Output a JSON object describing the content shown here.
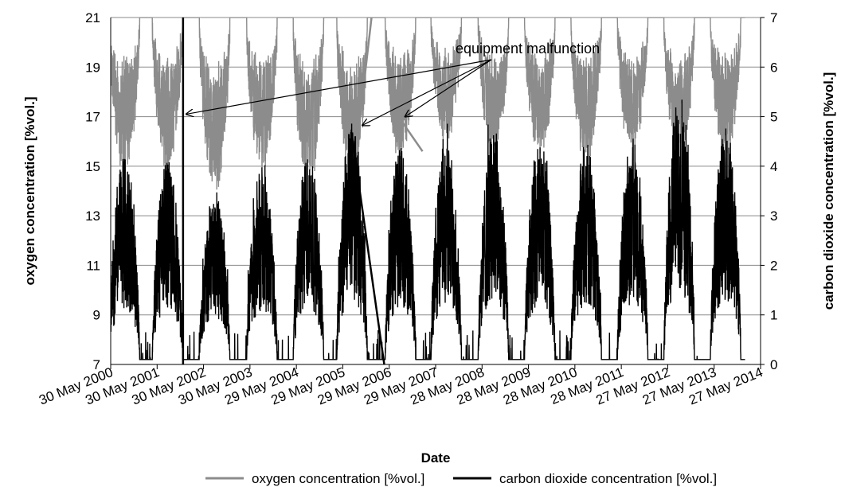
{
  "chart_data": {
    "type": "line",
    "title": "",
    "xlabel": "Date",
    "ylabel": "oxygen concentration [%vol.]",
    "y2label": "carbon dioxide concentration [%vol.]",
    "ylim": [
      7,
      21
    ],
    "y2lim": [
      0,
      7
    ],
    "yticks": [
      7,
      9,
      11,
      13,
      15,
      17,
      19,
      21
    ],
    "y2ticks": [
      0,
      1,
      2,
      3,
      4,
      5,
      6,
      7
    ],
    "xlim": [
      "2000-05-30",
      "2014-05-27"
    ],
    "xtick_labels": [
      "30 May 2000",
      "30 May 2001",
      "30 May 2002",
      "30 May 2003",
      "29 May 2004",
      "29 May 2005",
      "29 May 2006",
      "29 May 2007",
      "28 May 2008",
      "28 May 2009",
      "28 May 2010",
      "28 May 2011",
      "27 May 2012",
      "27 May 2013",
      "27 May 2014"
    ],
    "grid": "horizontal",
    "legend_position": "bottom",
    "annotation": "equipment  malfunction",
    "series": [
      {
        "name": "oxygen concentration [%vol.]",
        "axis": "left",
        "color": "#8c8c8c",
        "seasonal_minima": [
          {
            "date": "2000-09-15",
            "value": 14.5
          },
          {
            "date": "2001-08-20",
            "value": 14.6
          },
          {
            "date": "2002-08-25",
            "value": 13.6
          },
          {
            "date": "2003-09-01",
            "value": 14.5
          },
          {
            "date": "2004-09-01",
            "value": 13.9
          },
          {
            "date": "2005-08-10",
            "value": 14.0
          },
          {
            "date": "2006-08-25",
            "value": 15.0
          },
          {
            "date": "2007-08-20",
            "value": 15.7
          },
          {
            "date": "2008-08-25",
            "value": 15.0
          },
          {
            "date": "2009-08-25",
            "value": 15.2
          },
          {
            "date": "2010-08-25",
            "value": 14.8
          },
          {
            "date": "2011-08-25",
            "value": 15.1
          },
          {
            "date": "2012-08-25",
            "value": 14.9
          },
          {
            "date": "2013-08-25",
            "value": 14.9
          }
        ],
        "off_season_value": 21.0
      },
      {
        "name": "carbon dioxide concentration [%vol.]",
        "axis": "right",
        "color": "#000000",
        "seasonal_maxima": [
          {
            "date": "2000-09-15",
            "value": 4.2
          },
          {
            "date": "2001-08-20",
            "value": 4.2
          },
          {
            "date": "2002-08-25",
            "value": 3.5
          },
          {
            "date": "2003-09-01",
            "value": 4.0
          },
          {
            "date": "2004-09-01",
            "value": 4.3
          },
          {
            "date": "2005-08-10",
            "value": 4.9
          },
          {
            "date": "2006-08-25",
            "value": 4.4
          },
          {
            "date": "2007-08-20",
            "value": 4.6
          },
          {
            "date": "2008-08-25",
            "value": 4.8
          },
          {
            "date": "2009-08-25",
            "value": 4.6
          },
          {
            "date": "2010-08-25",
            "value": 4.5
          },
          {
            "date": "2011-08-25",
            "value": 4.6
          },
          {
            "date": "2012-08-25",
            "value": 5.5
          },
          {
            "date": "2013-08-25",
            "value": 4.9
          }
        ],
        "off_season_value": 0.1
      }
    ]
  }
}
